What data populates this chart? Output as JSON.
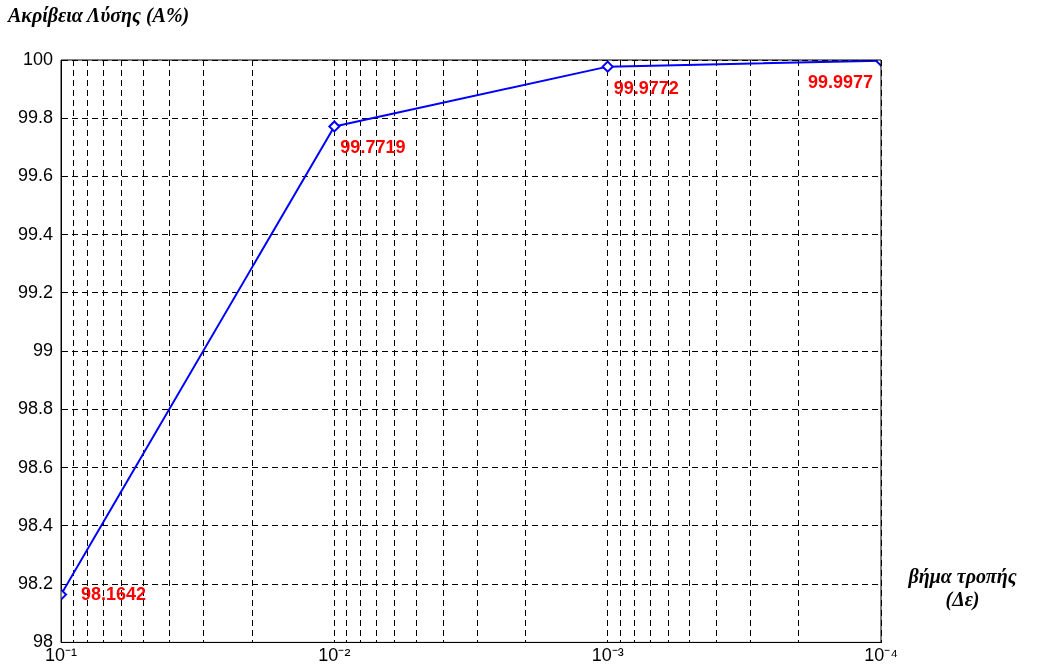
{
  "chart_data": {
    "type": "line",
    "ylabel": "Ακρίβεια Λύσης (Α%)",
    "xlabel": "βήμα τροπής\n(Δε)",
    "x": [
      0.1,
      0.01,
      0.001,
      0.0001
    ],
    "series": [
      {
        "color": "#0000ff",
        "values": [
          98.1642,
          99.7719,
          99.9772,
          99.9977
        ]
      }
    ],
    "log": "x",
    "xlim": [
      0.1,
      0.0001
    ],
    "xticks": [
      {
        "value": 0.1,
        "label": "10⁻¹"
      },
      {
        "value": 0.09,
        "label": null
      },
      {
        "value": 0.08,
        "label": null
      },
      {
        "value": 0.07,
        "label": null
      },
      {
        "value": 0.06,
        "label": null
      },
      {
        "value": 0.05,
        "label": null
      },
      {
        "value": 0.04,
        "label": null
      },
      {
        "value": 0.03,
        "label": null
      },
      {
        "value": 0.02,
        "label": null
      },
      {
        "value": 0.01,
        "label": "10⁻²"
      },
      {
        "value": 0.009,
        "label": null
      },
      {
        "value": 0.008,
        "label": null
      },
      {
        "value": 0.007,
        "label": null
      },
      {
        "value": 0.006,
        "label": null
      },
      {
        "value": 0.005,
        "label": null
      },
      {
        "value": 0.004,
        "label": null
      },
      {
        "value": 0.003,
        "label": null
      },
      {
        "value": 0.002,
        "label": null
      },
      {
        "value": 0.001,
        "label": "10⁻³"
      },
      {
        "value": 0.0009,
        "label": null
      },
      {
        "value": 0.0008,
        "label": null
      },
      {
        "value": 0.0007,
        "label": null
      },
      {
        "value": 0.0006,
        "label": null
      },
      {
        "value": 0.0005,
        "label": null
      },
      {
        "value": 0.0004,
        "label": null
      },
      {
        "value": 0.0003,
        "label": null
      },
      {
        "value": 0.0002,
        "label": null
      },
      {
        "value": 0.0001,
        "label": "10⁻⁴"
      }
    ],
    "ylim": [
      98,
      100
    ],
    "yticks": [
      98,
      98.2,
      98.4,
      98.6,
      98.8,
      99,
      99.2,
      99.4,
      99.6,
      99.8,
      100
    ],
    "grid": true,
    "marker": "diamond",
    "line_style": "solid",
    "data_labels": true,
    "legend": false
  }
}
